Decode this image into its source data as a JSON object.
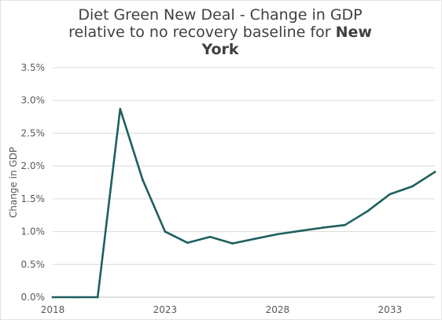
{
  "chart_data": {
    "type": "line",
    "title": {
      "line1": "Diet Green New Deal - Change in GDP",
      "line2_prefix": "relative to no recovery baseline for ",
      "line2_bold": "New",
      "line3_bold": "York"
    },
    "xlabel": "",
    "ylabel": "Change in GDP",
    "xlim": [
      2018,
      2035
    ],
    "ylim": [
      0,
      0.035
    ],
    "x_ticks": [
      2018,
      2023,
      2028,
      2033
    ],
    "y_ticks": [
      {
        "value": 0.0,
        "label": "0.0%"
      },
      {
        "value": 0.005,
        "label": "0.5%"
      },
      {
        "value": 0.01,
        "label": "1.0%"
      },
      {
        "value": 0.015,
        "label": "1.5%"
      },
      {
        "value": 0.02,
        "label": "2.0%"
      },
      {
        "value": 0.025,
        "label": "2.5%"
      },
      {
        "value": 0.03,
        "label": "3.0%"
      },
      {
        "value": 0.035,
        "label": "3.5%"
      }
    ],
    "grid": "horizontal",
    "legend": "none",
    "series_color": "#1e5f5f",
    "grid_color": "#d9d9d9",
    "series": [
      {
        "x": [
          2018,
          2019,
          2020,
          2021,
          2022,
          2023,
          2024,
          2025,
          2026,
          2027,
          2028,
          2029,
          2030,
          2031,
          2032,
          2033,
          2034,
          2035
        ],
        "values": [
          0.0,
          0.0,
          0.0,
          0.0287,
          0.0179,
          0.01,
          0.0083,
          0.0092,
          0.0082,
          0.0089,
          0.0096,
          0.0101,
          0.0106,
          0.011,
          0.0131,
          0.0157,
          0.0169,
          0.0191
        ]
      }
    ]
  }
}
